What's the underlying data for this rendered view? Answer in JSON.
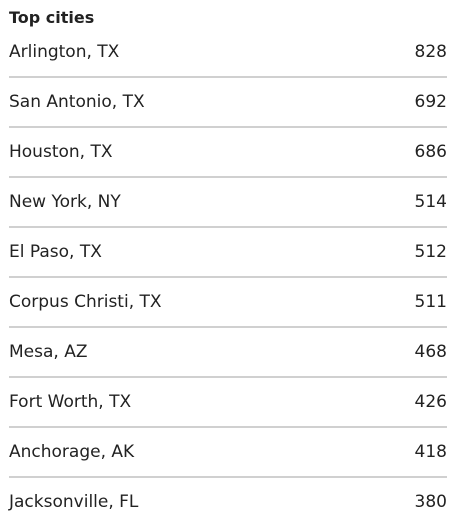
{
  "title": "Top cities",
  "rows": [
    {
      "city": "Arlington, TX",
      "value": 828
    },
    {
      "city": "San Antonio, TX",
      "value": 692
    },
    {
      "city": "Houston, TX",
      "value": 686
    },
    {
      "city": "New York, NY",
      "value": 514
    },
    {
      "city": "El Paso, TX",
      "value": 512
    },
    {
      "city": "Corpus Christi, TX",
      "value": 511
    },
    {
      "city": "Mesa, AZ",
      "value": 468
    },
    {
      "city": "Fort Worth, TX",
      "value": 426
    },
    {
      "city": "Anchorage, AK",
      "value": 418
    },
    {
      "city": "Jacksonville, FL",
      "value": 380
    }
  ]
}
